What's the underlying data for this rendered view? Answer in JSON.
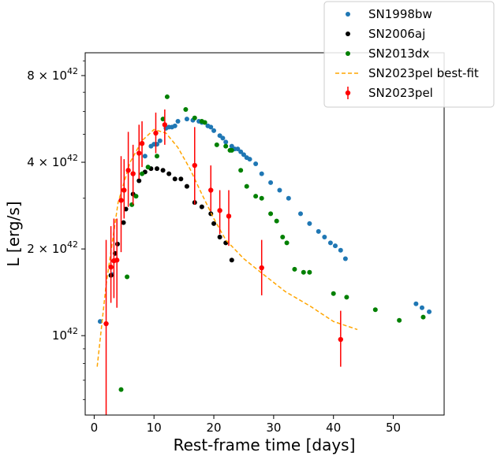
{
  "chart_data": {
    "type": "scatter",
    "title": "",
    "xlabel": "Rest-frame time [days]",
    "ylabel": "L [erg/s]",
    "yscale": "log",
    "xlim": [
      -1.5,
      58.5
    ],
    "ylim": [
      5.3e+41,
      9.6e+42
    ],
    "grid": false,
    "legend_position": "top-right",
    "x_ticks": [
      0,
      10,
      20,
      30,
      40,
      50
    ],
    "x_tick_labels": [
      "0",
      "10",
      "20",
      "30",
      "40",
      "50"
    ],
    "y_ticks": [
      1e+42,
      2e+42,
      4e+42,
      8e+42
    ],
    "y_tick_labels": [
      {
        "mantissa": "",
        "exp": "42"
      },
      {
        "mantissa": "2 × ",
        "exp": "42"
      },
      {
        "mantissa": "4 × ",
        "exp": "42"
      },
      {
        "mantissa": "8 × ",
        "exp": "42"
      }
    ],
    "y_tick_base": "10",
    "series": [
      {
        "name": "SN1998bw",
        "color": "#1f77b4",
        "kind": "points",
        "points": [
          [
            1.0,
            1.12e+42
          ],
          [
            3.0,
            1.63e+42
          ],
          [
            8.5,
            4.2e+42
          ],
          [
            9.5,
            4.55e+42
          ],
          [
            10.0,
            4.62e+42
          ],
          [
            10.5,
            4.62e+42
          ],
          [
            11.0,
            4.75e+42
          ],
          [
            12.0,
            5.25e+42
          ],
          [
            12.5,
            5.3e+42
          ],
          [
            13.0,
            5.3e+42
          ],
          [
            13.5,
            5.35e+42
          ],
          [
            14.0,
            5.55e+42
          ],
          [
            15.5,
            5.65e+42
          ],
          [
            16.5,
            5.6e+42
          ],
          [
            17.5,
            5.55e+42
          ],
          [
            18.0,
            5.5e+42
          ],
          [
            19.0,
            5.35e+42
          ],
          [
            19.5,
            5.3e+42
          ],
          [
            20.0,
            5.15e+42
          ],
          [
            21.0,
            4.95e+42
          ],
          [
            21.5,
            4.85e+42
          ],
          [
            22.0,
            4.7e+42
          ],
          [
            23.0,
            4.55e+42
          ],
          [
            23.5,
            4.45e+42
          ],
          [
            24.0,
            4.45e+42
          ],
          [
            24.5,
            4.35e+42
          ],
          [
            25.0,
            4.25e+42
          ],
          [
            25.5,
            4.15e+42
          ],
          [
            26.0,
            4.1e+42
          ],
          [
            27.0,
            3.95e+42
          ],
          [
            28.0,
            3.65e+42
          ],
          [
            29.5,
            3.4e+42
          ],
          [
            31.0,
            3.2e+42
          ],
          [
            32.5,
            3e+42
          ],
          [
            34.5,
            2.65e+42
          ],
          [
            36.0,
            2.45e+42
          ],
          [
            37.5,
            2.3e+42
          ],
          [
            38.5,
            2.2e+42
          ],
          [
            39.5,
            2.1e+42
          ],
          [
            40.3,
            2.05e+42
          ],
          [
            41.2,
            1.98e+42
          ],
          [
            42.0,
            1.85e+42
          ],
          [
            53.8,
            1.29e+42
          ],
          [
            54.8,
            1.25e+42
          ],
          [
            56.0,
            1.21e+42
          ]
        ]
      },
      {
        "name": "SN2006aj",
        "color": "#000000",
        "kind": "points",
        "points": [
          [
            2.8,
            1.62e+42
          ],
          [
            3.5,
            1.93e+42
          ],
          [
            3.9,
            2.08e+42
          ],
          [
            4.9,
            2.47e+42
          ],
          [
            5.3,
            2.75e+42
          ],
          [
            6.5,
            3.1e+42
          ],
          [
            7.5,
            3.45e+42
          ],
          [
            8.5,
            3.7e+42
          ],
          [
            9.5,
            3.8e+42
          ],
          [
            10.5,
            3.8e+42
          ],
          [
            11.5,
            3.75e+42
          ],
          [
            12.5,
            3.65e+42
          ],
          [
            13.5,
            3.5e+42
          ],
          [
            14.5,
            3.5e+42
          ],
          [
            15.5,
            3.3e+42
          ],
          [
            16.8,
            2.9e+42
          ],
          [
            18.0,
            2.8e+42
          ],
          [
            19.5,
            2.65e+42
          ],
          [
            20.0,
            2.45e+42
          ],
          [
            21.0,
            2.2e+42
          ],
          [
            22.0,
            2.1e+42
          ],
          [
            23.0,
            1.83e+42
          ]
        ]
      },
      {
        "name": "SN2013dx",
        "color": "#008000",
        "kind": "points",
        "points": [
          [
            4.5,
            6.5e+41
          ],
          [
            5.5,
            1.6e+42
          ],
          [
            6.3,
            2.85e+42
          ],
          [
            7.0,
            3.05e+42
          ],
          [
            8.0,
            3.65e+42
          ],
          [
            9.0,
            3.85e+42
          ],
          [
            10.5,
            4.2e+42
          ],
          [
            11.5,
            5.65e+42
          ],
          [
            12.2,
            6.75e+42
          ],
          [
            15.3,
            6.1e+42
          ],
          [
            16.8,
            5.7e+42
          ],
          [
            18.0,
            5.55e+42
          ],
          [
            18.5,
            5.5e+42
          ],
          [
            20.5,
            4.6e+42
          ],
          [
            22.0,
            4.55e+42
          ],
          [
            22.7,
            4.4e+42
          ],
          [
            23.0,
            4.4e+42
          ],
          [
            24.5,
            3.75e+42
          ],
          [
            25.5,
            3.3e+42
          ],
          [
            27.0,
            3.05e+42
          ],
          [
            28.0,
            3e+42
          ],
          [
            29.5,
            2.65e+42
          ],
          [
            30.5,
            2.5e+42
          ],
          [
            31.5,
            2.2e+42
          ],
          [
            32.2,
            2.1e+42
          ],
          [
            33.5,
            1.7e+42
          ],
          [
            35.0,
            1.66e+42
          ],
          [
            36.0,
            1.66e+42
          ],
          [
            40.0,
            1.4e+42
          ],
          [
            42.2,
            1.36e+42
          ],
          [
            47.0,
            1.23e+42
          ],
          [
            51.0,
            1.13e+42
          ],
          [
            55.0,
            1.16e+42
          ]
        ]
      },
      {
        "name": "SN2023pel best-fit",
        "color": "#ffa500",
        "kind": "line",
        "points": [
          [
            0.5,
            7.8e+41
          ],
          [
            2.0,
            1.5e+42
          ],
          [
            4.0,
            2.9e+42
          ],
          [
            6.0,
            4e+42
          ],
          [
            8.0,
            4.75e+42
          ],
          [
            10.0,
            5.2e+42
          ],
          [
            12.0,
            5.05e+42
          ],
          [
            14.0,
            4.5e+42
          ],
          [
            16.0,
            3.8e+42
          ],
          [
            18.0,
            3.1e+42
          ],
          [
            20.0,
            2.55e+42
          ],
          [
            22.0,
            2.15e+42
          ],
          [
            25.0,
            1.85e+42
          ],
          [
            28.0,
            1.65e+42
          ],
          [
            32.0,
            1.42e+42
          ],
          [
            36.0,
            1.27e+42
          ],
          [
            40.0,
            1.12e+42
          ],
          [
            44.0,
            1.05e+42
          ]
        ]
      },
      {
        "name": "SN2023pel",
        "color": "#ff0000",
        "kind": "errorbar",
        "points": [
          [
            2.0,
            1.1e+42,
            5e+41,
            2.15e+42
          ],
          [
            2.8,
            1.73e+42,
            1.3e+42,
            2.4e+42
          ],
          [
            3.3,
            1.82e+42,
            1.35e+42,
            2.55e+42
          ],
          [
            3.8,
            1.83e+42,
            1.25e+42,
            2.55e+42
          ],
          [
            4.5,
            2.95e+42,
            1.95e+42,
            4.2e+42
          ],
          [
            5.0,
            3.2e+42,
            2.55e+42,
            4.1e+42
          ],
          [
            5.7,
            3.75e+42,
            2.8e+42,
            5.1e+42
          ],
          [
            6.5,
            3.65e+42,
            2.85e+42,
            4.6e+42
          ],
          [
            7.5,
            4.3e+42,
            3.5e+42,
            5.4e+42
          ],
          [
            8.0,
            4.65e+42,
            3.85e+42,
            5.55e+42
          ],
          [
            10.3,
            5.05e+42,
            4.3e+42,
            5.95e+42
          ],
          [
            11.8,
            5.4e+42,
            4.6e+42,
            6.1e+42
          ],
          [
            16.8,
            3.9e+42,
            2.85e+42,
            5.3e+42
          ],
          [
            19.5,
            3.2e+42,
            2.7e+42,
            3.9e+42
          ],
          [
            21.0,
            2.72e+42,
            2.25e+42,
            3.2e+42
          ],
          [
            22.5,
            2.6e+42,
            2.05e+42,
            3.2e+42
          ],
          [
            28.0,
            1.72e+42,
            1.38e+42,
            2.15e+42
          ],
          [
            41.2,
            9.7e+41,
            7.8e+41,
            1.22e+42
          ]
        ]
      }
    ]
  }
}
